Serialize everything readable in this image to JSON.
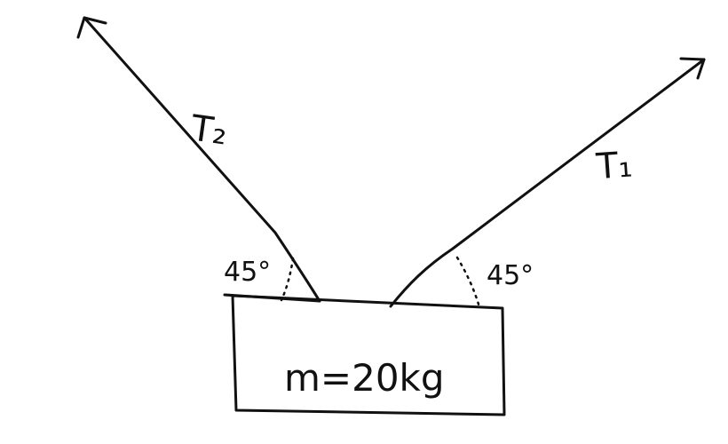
{
  "diagram": {
    "forces": [
      {
        "label": "T₂"
      },
      {
        "label": "T₁"
      }
    ],
    "angles": [
      {
        "label": "45°"
      },
      {
        "label": "45°"
      }
    ],
    "block": {
      "label": "m=20kg"
    }
  }
}
